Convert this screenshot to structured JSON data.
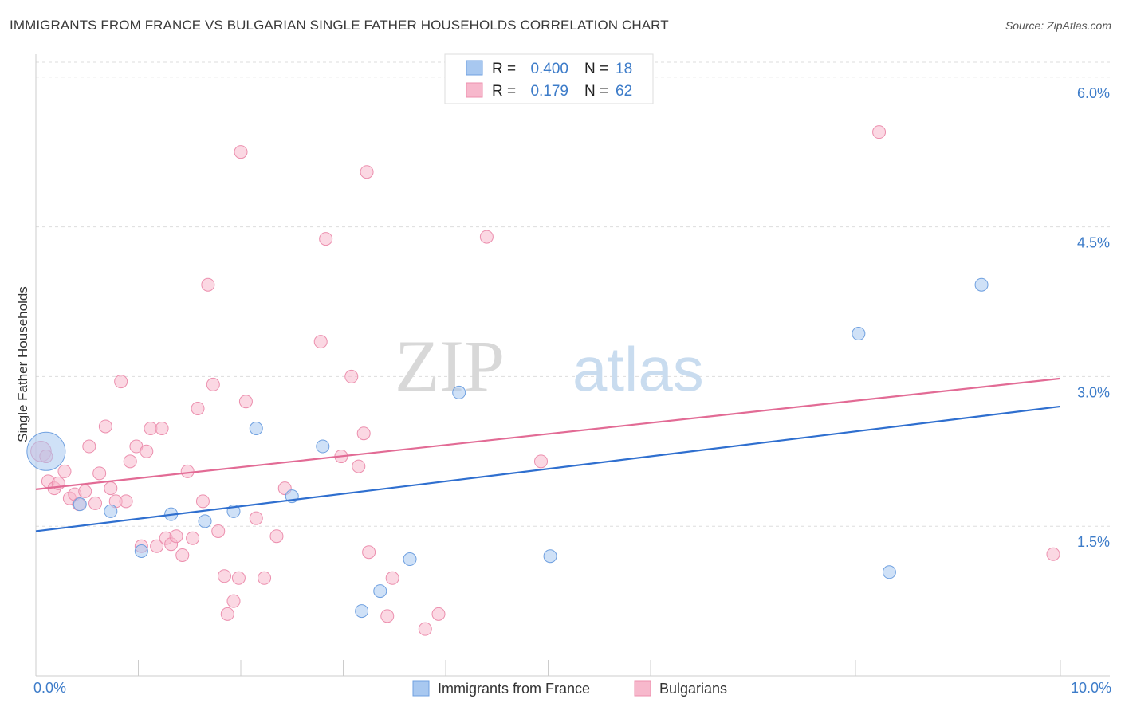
{
  "title": "IMMIGRANTS FROM FRANCE VS BULGARIAN SINGLE FATHER HOUSEHOLDS CORRELATION CHART",
  "source": "Source: ZipAtlas.com",
  "watermark": {
    "zip": "ZIP",
    "atlas": "atlas"
  },
  "colors": {
    "blue_fill": "#a8c8f0",
    "blue_stroke": "#6fa0e0",
    "blue_line": "#2f6fcf",
    "pink_fill": "#f7b8cc",
    "pink_stroke": "#ec8fae",
    "pink_line": "#e26b95",
    "axis_label": "#3d7cc9",
    "grid": "#dddddd"
  },
  "legend": [
    {
      "r_label": "R =",
      "r_value": "0.400",
      "n_label": "N =",
      "n_value": "18"
    },
    {
      "r_label": "R =",
      "r_value": "0.179",
      "n_label": "N =",
      "n_value": "62"
    }
  ],
  "chart_data": {
    "type": "scatter",
    "title": "IMMIGRANTS FROM FRANCE VS BULGARIAN SINGLE FATHER HOUSEHOLDS CORRELATION CHART",
    "xlabel": "",
    "ylabel": "Single Father Households",
    "xlim": [
      0,
      10
    ],
    "ylim": [
      0,
      6.15
    ],
    "x_tick_labels": [
      {
        "value": 0,
        "label": "0.0%"
      },
      {
        "value": 10,
        "label": "10.0%"
      }
    ],
    "y_tick_labels": [
      {
        "value": 1.5,
        "label": "1.5%"
      },
      {
        "value": 3.0,
        "label": "3.0%"
      },
      {
        "value": 4.5,
        "label": "4.5%"
      },
      {
        "value": 6.0,
        "label": "6.0%"
      }
    ],
    "x_minor_ticks": [
      0,
      1,
      2,
      3,
      4,
      5,
      6,
      7,
      8,
      9,
      10
    ],
    "legend_position": "top-center",
    "series": [
      {
        "name": "Immigrants from France",
        "color": "blue",
        "trend": {
          "x": [
            0,
            10
          ],
          "y": [
            1.45,
            2.7
          ]
        },
        "points": [
          [
            0.1,
            2.25,
            3
          ],
          [
            0.43,
            1.72,
            1
          ],
          [
            0.73,
            1.65,
            1
          ],
          [
            1.03,
            1.25,
            1
          ],
          [
            1.32,
            1.62,
            1
          ],
          [
            1.65,
            1.55,
            1
          ],
          [
            1.93,
            1.65,
            1
          ],
          [
            2.15,
            2.48,
            1
          ],
          [
            2.5,
            1.8,
            1
          ],
          [
            2.8,
            2.3,
            1
          ],
          [
            3.18,
            0.65,
            1
          ],
          [
            3.36,
            0.85,
            1
          ],
          [
            3.65,
            1.17,
            1
          ],
          [
            4.13,
            2.84,
            1
          ],
          [
            5.02,
            1.2,
            1
          ],
          [
            8.03,
            3.43,
            1
          ],
          [
            8.33,
            1.04,
            1
          ],
          [
            9.23,
            3.92,
            1
          ]
        ]
      },
      {
        "name": "Bulgarians",
        "color": "pink",
        "trend": {
          "x": [
            0,
            10
          ],
          "y": [
            1.87,
            2.98
          ]
        },
        "points": [
          [
            0.05,
            2.25,
            1.6
          ],
          [
            0.1,
            2.2,
            1
          ],
          [
            0.12,
            1.95,
            1
          ],
          [
            0.18,
            1.88,
            1
          ],
          [
            0.22,
            1.93,
            1
          ],
          [
            0.28,
            2.05,
            1
          ],
          [
            0.33,
            1.78,
            1
          ],
          [
            0.38,
            1.82,
            1
          ],
          [
            0.42,
            1.72,
            1
          ],
          [
            0.48,
            1.85,
            1
          ],
          [
            0.52,
            2.3,
            1
          ],
          [
            0.58,
            1.73,
            1
          ],
          [
            0.62,
            2.03,
            1
          ],
          [
            0.68,
            2.5,
            1
          ],
          [
            0.73,
            1.88,
            1
          ],
          [
            0.78,
            1.75,
            1
          ],
          [
            0.83,
            2.95,
            1
          ],
          [
            0.88,
            1.75,
            1
          ],
          [
            0.92,
            2.15,
            1
          ],
          [
            0.98,
            2.3,
            1
          ],
          [
            1.03,
            1.3,
            1
          ],
          [
            1.08,
            2.25,
            1
          ],
          [
            1.12,
            2.48,
            1
          ],
          [
            1.18,
            1.3,
            1
          ],
          [
            1.23,
            2.48,
            1
          ],
          [
            1.27,
            1.38,
            1
          ],
          [
            1.32,
            1.32,
            1
          ],
          [
            1.37,
            1.4,
            1
          ],
          [
            1.43,
            1.21,
            1
          ],
          [
            1.48,
            2.05,
            1
          ],
          [
            1.53,
            1.38,
            1
          ],
          [
            1.58,
            2.68,
            1
          ],
          [
            1.63,
            1.75,
            1
          ],
          [
            1.68,
            3.92,
            1
          ],
          [
            1.73,
            2.92,
            1
          ],
          [
            1.78,
            1.45,
            1
          ],
          [
            1.84,
            1.0,
            1
          ],
          [
            1.87,
            0.62,
            1
          ],
          [
            1.93,
            0.75,
            1
          ],
          [
            1.98,
            0.98,
            1
          ],
          [
            2.0,
            5.25,
            1
          ],
          [
            2.05,
            2.75,
            1
          ],
          [
            2.15,
            1.58,
            1
          ],
          [
            2.23,
            0.98,
            1
          ],
          [
            2.35,
            1.4,
            1
          ],
          [
            2.43,
            1.88,
            1
          ],
          [
            2.78,
            3.35,
            1
          ],
          [
            2.83,
            4.38,
            1
          ],
          [
            2.98,
            2.2,
            1
          ],
          [
            3.08,
            3.0,
            1
          ],
          [
            3.15,
            2.1,
            1
          ],
          [
            3.2,
            2.43,
            1
          ],
          [
            3.23,
            5.05,
            1
          ],
          [
            3.25,
            1.24,
            1
          ],
          [
            3.43,
            0.6,
            1
          ],
          [
            3.48,
            0.98,
            1
          ],
          [
            3.8,
            0.47,
            1
          ],
          [
            3.93,
            0.62,
            1
          ],
          [
            4.4,
            4.4,
            1
          ],
          [
            4.93,
            2.15,
            1
          ],
          [
            8.23,
            5.45,
            1
          ],
          [
            9.93,
            1.22,
            1
          ]
        ]
      }
    ]
  },
  "bottom_legend": [
    {
      "label": "Immigrants from France"
    },
    {
      "label": "Bulgarians"
    }
  ]
}
